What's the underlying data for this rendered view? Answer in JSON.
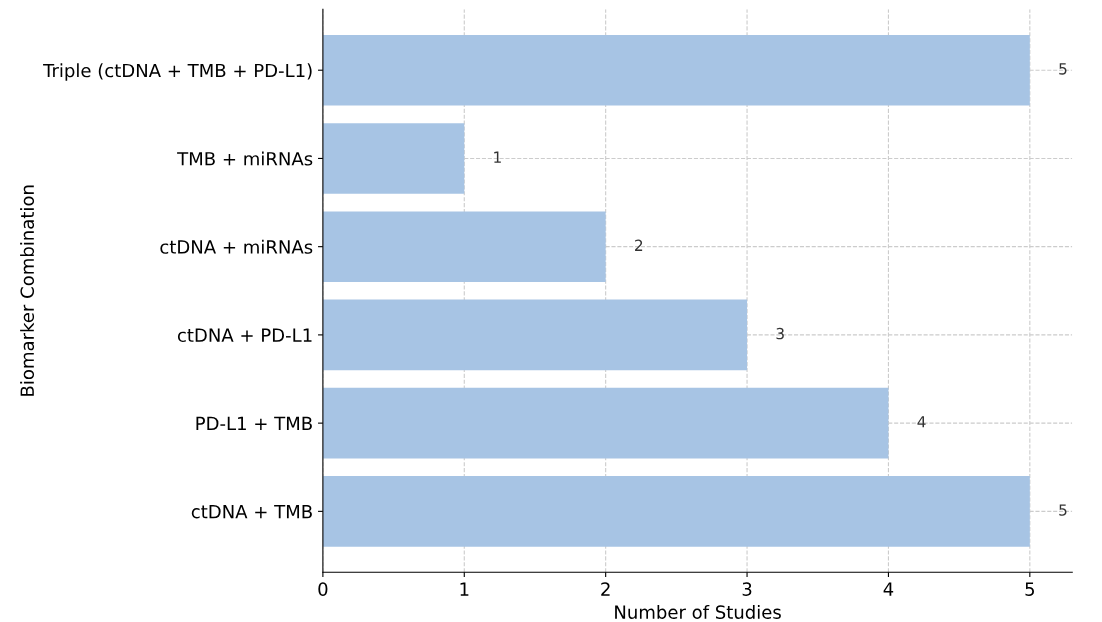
{
  "chart_data": {
    "type": "bar",
    "orientation": "horizontal",
    "xlabel": "Number of Studies",
    "ylabel": "Biomarker Combination",
    "categories": [
      "Triple (ctDNA + TMB + PD-L1)",
      "TMB + miRNAs",
      "ctDNA + miRNAs",
      "ctDNA + PD-L1",
      "PD-L1 + TMB",
      "ctDNA + TMB"
    ],
    "values": [
      5,
      1,
      2,
      3,
      4,
      5
    ],
    "color": "#a7c4e4",
    "xlim": [
      0,
      5.3
    ],
    "xticks": [
      0,
      1,
      2,
      3,
      4,
      5
    ],
    "grid": true,
    "data_labels": true
  }
}
